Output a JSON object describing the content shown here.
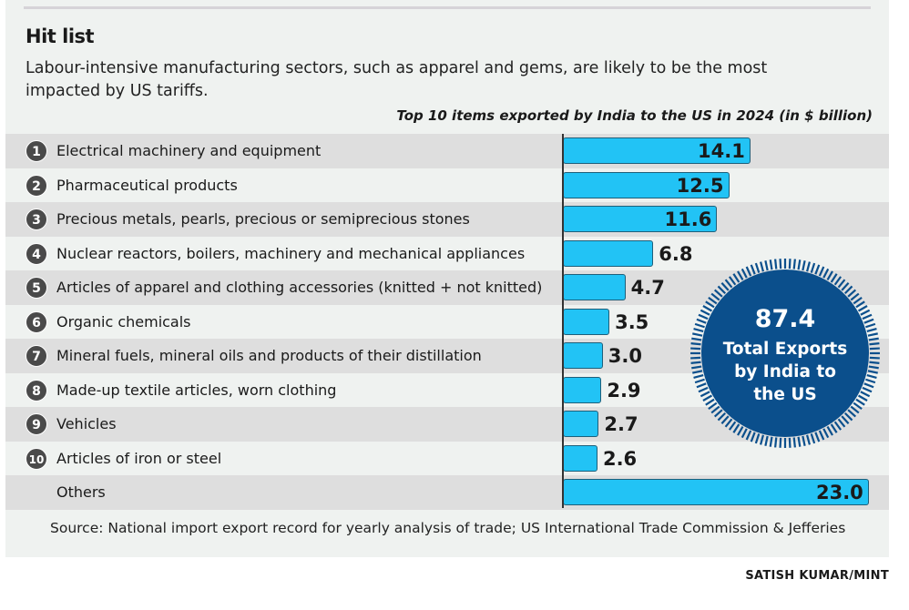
{
  "header": {
    "title": "Hit list",
    "subtitle": "Labour-intensive manufacturing sectors, such as apparel and gems, are likely to be the most impacted by US tariffs."
  },
  "chart_data": {
    "type": "bar",
    "orientation": "horizontal",
    "title": "Top 10 items exported by India to the US in 2024 (in $ billion)",
    "ranks": [
      "1",
      "2",
      "3",
      "4",
      "5",
      "6",
      "7",
      "8",
      "9",
      "10",
      ""
    ],
    "categories": [
      "Electrical machinery and equipment",
      "Pharmaceutical products",
      "Precious metals, pearls, precious or semiprecious stones",
      "Nuclear reactors, boilers, machinery and mechanical appliances",
      "Articles of apparel and clothing accessories (knitted + not knitted)",
      "Organic chemicals",
      "Mineral fuels, mineral oils and products of their distillation",
      "Made-up textile articles, worn clothing",
      "Vehicles",
      "Articles of iron or steel",
      "Others"
    ],
    "values": [
      14.1,
      12.5,
      11.6,
      6.8,
      4.7,
      3.5,
      3.0,
      2.9,
      2.7,
      2.6,
      23.0
    ],
    "value_labels": [
      "14.1",
      "12.5",
      "11.6",
      "6.8",
      "4.7",
      "3.5",
      "3.0",
      "2.9",
      "2.7",
      "2.6",
      "23.0"
    ],
    "bar_color": "#22c3f5",
    "callout": {
      "value": "87.4",
      "label": "Total Exports by India to the US",
      "color": "#0b4f8c"
    }
  },
  "footer": {
    "source": "Source: National import export record for yearly analysis of trade; US International Trade Commission & Jefferies",
    "credit": "SATISH KUMAR/MINT"
  }
}
